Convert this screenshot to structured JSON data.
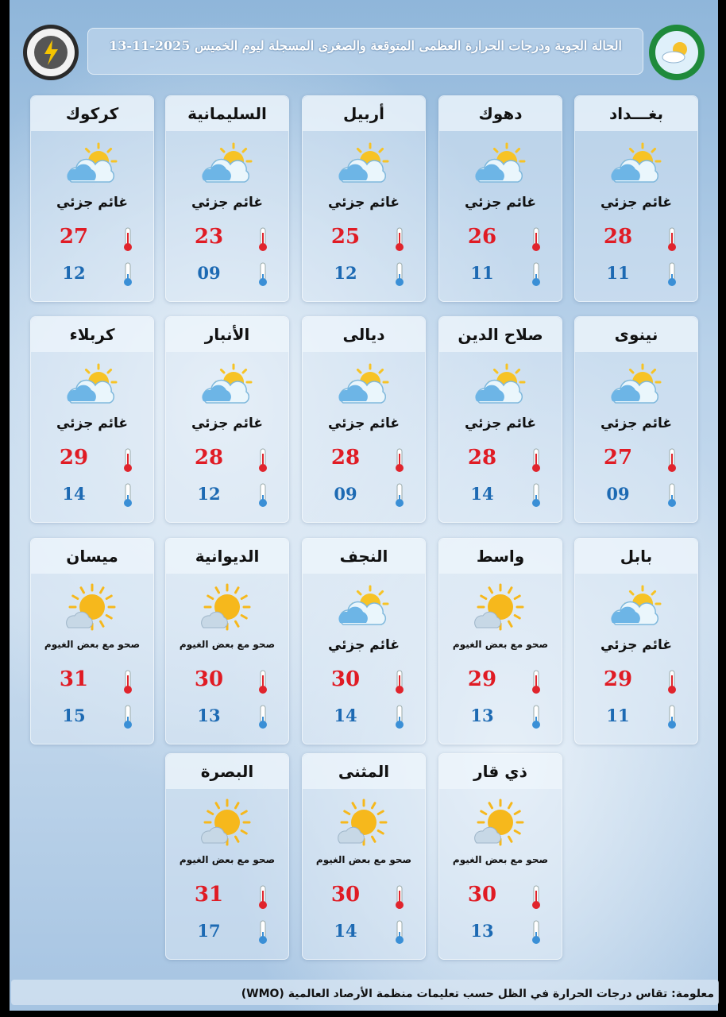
{
  "header": {
    "title": "الحالة الجوية ودرجات الحرارة العظمى المتوقعة والصغرى المسجلة ليوم الخميس 2025-11-13"
  },
  "cards": [
    {
      "city": "بغـــداد",
      "condition": "غائم جزئي",
      "max": "28",
      "min": "11"
    },
    {
      "city": "دهوك",
      "condition": "غائم جزئي",
      "max": "26",
      "min": "11"
    },
    {
      "city": "أربيل",
      "condition": "غائم جزئي",
      "max": "25",
      "min": "12"
    },
    {
      "city": "السليمانية",
      "condition": "غائم جزئي",
      "max": "23",
      "min": "09"
    },
    {
      "city": "كركوك",
      "condition": "غائم جزئي",
      "max": "27",
      "min": "12"
    },
    {
      "city": "نينوى",
      "condition": "غائم جزئي",
      "max": "27",
      "min": "09"
    },
    {
      "city": "صلاح الدين",
      "condition": "غائم جزئي",
      "max": "28",
      "min": "14"
    },
    {
      "city": "ديالى",
      "condition": "غائم جزئي",
      "max": "28",
      "min": "09"
    },
    {
      "city": "الأنبار",
      "condition": "غائم جزئي",
      "max": "28",
      "min": "12"
    },
    {
      "city": "كربلاء",
      "condition": "غائم جزئي",
      "max": "29",
      "min": "14"
    },
    {
      "city": "بابل",
      "condition": "غائم جزئي",
      "max": "29",
      "min": "11"
    },
    {
      "city": "واسط",
      "condition": "صحو مع بعض الغيوم",
      "max": "29",
      "min": "13"
    },
    {
      "city": "النجف",
      "condition": "غائم جزئي",
      "max": "30",
      "min": "14"
    },
    {
      "city": "الديوانية",
      "condition": "صحو مع بعض الغيوم",
      "max": "30",
      "min": "13"
    },
    {
      "city": "ميسان",
      "condition": "صحو مع بعض الغيوم",
      "max": "31",
      "min": "15"
    },
    {
      "city": "ذي قار",
      "condition": "صحو مع بعض الغيوم",
      "max": "30",
      "min": "13"
    },
    {
      "city": "المثنى",
      "condition": "صحو مع بعض الغيوم",
      "max": "30",
      "min": "14"
    },
    {
      "city": "البصرة",
      "condition": "صحو مع بعض الغيوم",
      "max": "31",
      "min": "17"
    }
  ],
  "footer": {
    "note": "معلومة: تقاس درجات الحرارة في الظل حسب تعليمات منظمة الأرصاد العالمية (WMO)"
  }
}
